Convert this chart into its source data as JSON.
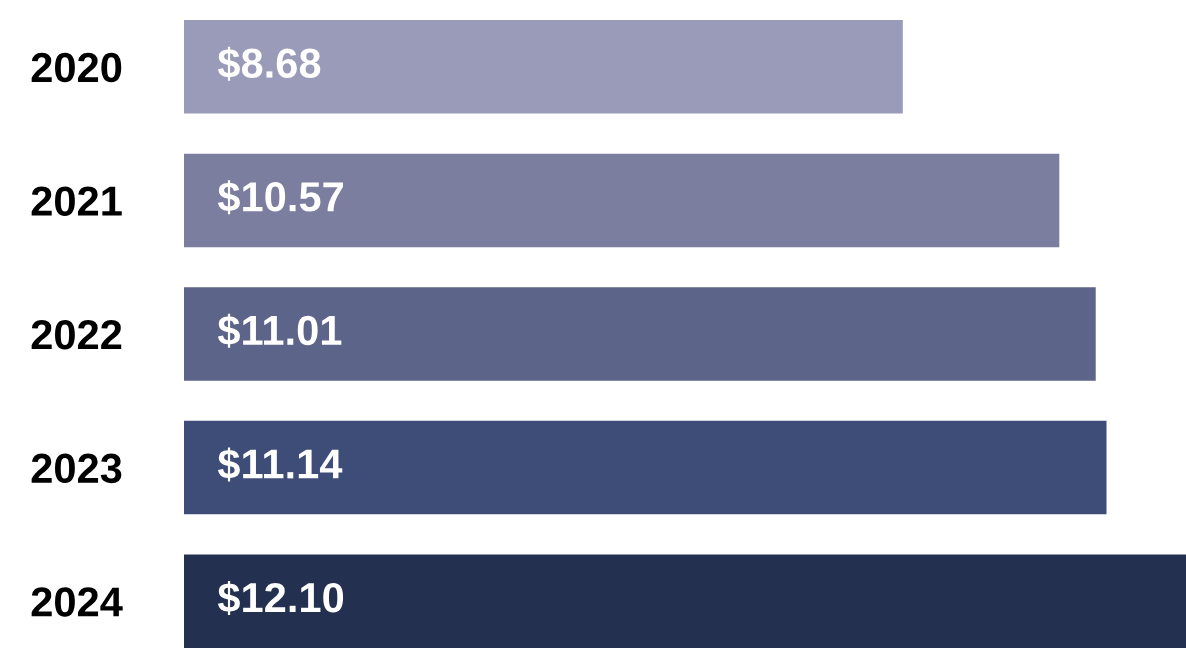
{
  "chart_data": {
    "type": "bar",
    "orientation": "horizontal",
    "categories": [
      "2020",
      "2021",
      "2022",
      "2023",
      "2024"
    ],
    "values": [
      8.68,
      10.57,
      11.01,
      11.14,
      12.1
    ],
    "value_labels": [
      "$8.68",
      "$10.57",
      "$11.01",
      "$11.14",
      "$12.10"
    ],
    "colors": [
      "#9a9bb8",
      "#7b7e9f",
      "#5d6489",
      "#3e4c78",
      "#24304f"
    ],
    "tick_labels": "y",
    "grid": false,
    "legend": false
  }
}
